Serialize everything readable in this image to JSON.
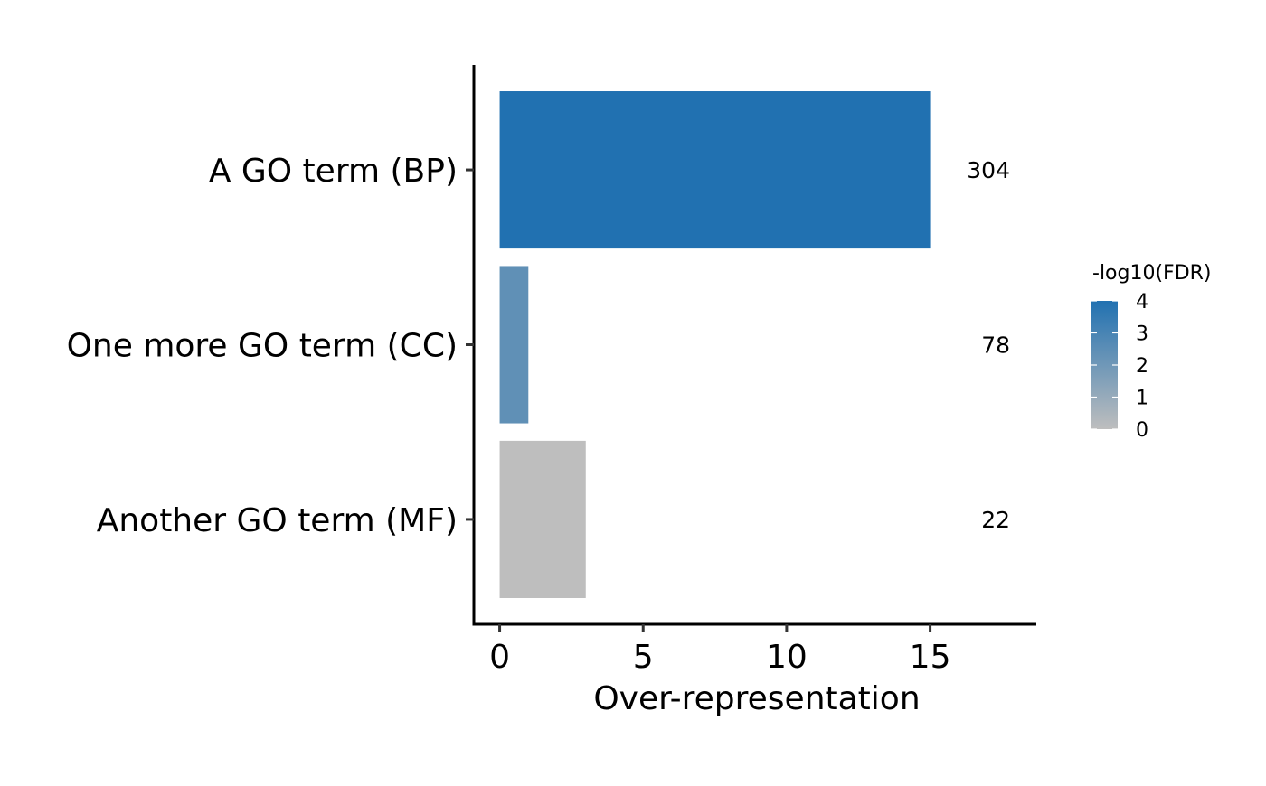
{
  "chart_data": {
    "type": "bar",
    "orientation": "horizontal",
    "title": "",
    "xlabel": "Over-representation",
    "ylabel": "",
    "xlim": [
      -0.9,
      18.7
    ],
    "x_ticks": [
      0,
      5,
      10,
      15
    ],
    "grid": false,
    "categories": [
      "A GO term (BP)",
      "One more GO term (CC)",
      "Another GO term (MF)"
    ],
    "values": [
      15,
      1,
      3
    ],
    "bar_labels": [
      "304",
      "78",
      "22"
    ],
    "color_values": [
      4,
      2.4,
      0
    ],
    "legend": {
      "title": "-log10(FDR)",
      "position": "right",
      "type": "colorbar",
      "ticks": [
        4,
        3,
        2,
        1,
        0
      ],
      "range": [
        0,
        4
      ],
      "low_color": "#bebebe",
      "high_color": "#2171b1"
    }
  }
}
